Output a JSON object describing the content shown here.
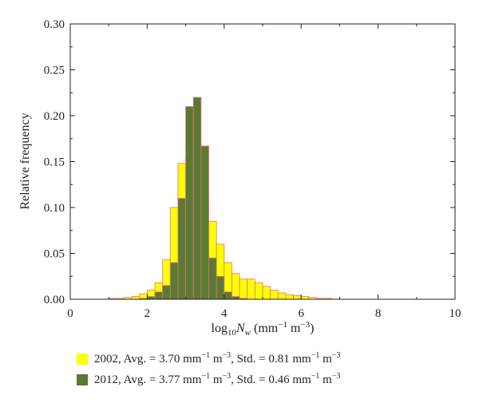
{
  "chart_data": {
    "type": "bar",
    "ylabel": "Relative frequency",
    "xlabel": {
      "prefix": "log",
      "sub": "10",
      "var": "N",
      "var_sub": "w",
      "unit_open": " (mm",
      "exp1": "−1",
      "mid": " m",
      "exp2": "−3",
      "close": ")"
    },
    "xlim": [
      0,
      10
    ],
    "ylim": [
      0,
      0.3
    ],
    "xticks": [
      "0",
      "2",
      "4",
      "6",
      "8",
      "10"
    ],
    "yticks": [
      "0.00",
      "0.05",
      "0.10",
      "0.15",
      "0.20",
      "0.25",
      "0.30"
    ],
    "bin_width": 0.2,
    "bin_start": 1.0,
    "series": [
      {
        "name": "2002",
        "color": "#ffff00",
        "edge_color": "#e8707a",
        "values": [
          0.001,
          0.001,
          0.002,
          0.003,
          0.006,
          0.01,
          0.018,
          0.043,
          0.1,
          0.148,
          0.155,
          0.14,
          0.115,
          0.085,
          0.06,
          0.04,
          0.028,
          0.022,
          0.022,
          0.018,
          0.014,
          0.01,
          0.007,
          0.005,
          0.004,
          0.003,
          0.002,
          0.001,
          0.001
        ]
      },
      {
        "name": "2012",
        "color": "#5a7a32",
        "edge_color": "#e8707a",
        "values": [
          0,
          0,
          0,
          0,
          0.001,
          0.003,
          0.008,
          0.015,
          0.04,
          0.11,
          0.21,
          0.22,
          0.167,
          0.045,
          0.025,
          0.008,
          0.003,
          0.001,
          0,
          0,
          0,
          0,
          0,
          0,
          0,
          0,
          0,
          0,
          0
        ]
      }
    ]
  },
  "legend": [
    {
      "color": "#ffff00",
      "year": "2002",
      "avg_text": ", Avg. = 3.70 mm",
      "e1": "−1",
      "m1": " m",
      "e2": "−3",
      "std_text": ", Std. = 0.81 mm",
      "e3": "−1",
      "m2": " m",
      "e4": "−3"
    },
    {
      "color": "#5a7a32",
      "year": "2012",
      "avg_text": ", Avg. = 3.77 mm",
      "e1": "−1",
      "m1": " m",
      "e2": "−3",
      "std_text": ", Std. = 0.46 mm",
      "e3": "−1",
      "m2": " m",
      "e4": "−3"
    }
  ]
}
